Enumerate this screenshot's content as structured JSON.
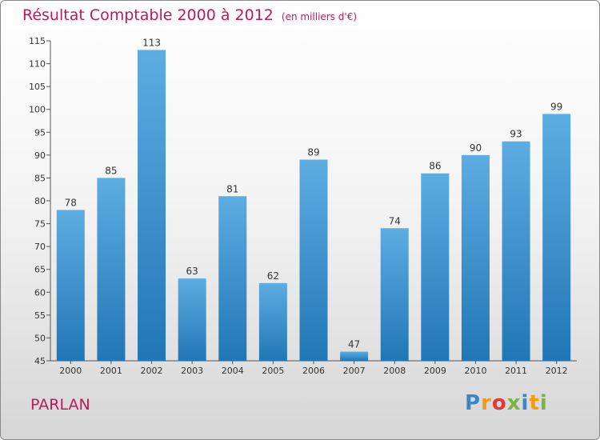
{
  "header": {
    "title": "Résultat Comptable 2000 à 2012",
    "unit": "(en milliers d'€)"
  },
  "footer": {
    "commune": "PARLAN",
    "logo_text": "Proxiti",
    "logo_letters": [
      {
        "ch": "P",
        "color": "#3d85c6"
      },
      {
        "ch": "r",
        "color": "#f39c12"
      },
      {
        "ch": "o",
        "color": "#e53935"
      },
      {
        "ch": "x",
        "color": "#7cb342"
      },
      {
        "ch": "i",
        "color": "#3d85c6"
      },
      {
        "ch": "t",
        "color": "#f39c12"
      },
      {
        "ch": "i",
        "color": "#7cb342"
      }
    ]
  },
  "colors": {
    "accent": "#c2185b",
    "bar_light": "#5dade2",
    "bar_dark": "#2176b5"
  },
  "chart_data": {
    "type": "bar",
    "categories": [
      "2000",
      "2001",
      "2002",
      "2003",
      "2004",
      "2005",
      "2006",
      "2007",
      "2008",
      "2009",
      "2010",
      "2011",
      "2012"
    ],
    "values": [
      78,
      85,
      113,
      63,
      81,
      62,
      89,
      47,
      74,
      86,
      90,
      93,
      99
    ],
    "title": "Résultat Comptable 2000 à 2012",
    "subtitle": "(en milliers d'€)",
    "ylim": [
      45,
      115
    ],
    "yticks": [
      45,
      50,
      55,
      60,
      65,
      70,
      75,
      80,
      85,
      90,
      95,
      100,
      105,
      110,
      115
    ],
    "grid": false,
    "data_labels": true
  }
}
